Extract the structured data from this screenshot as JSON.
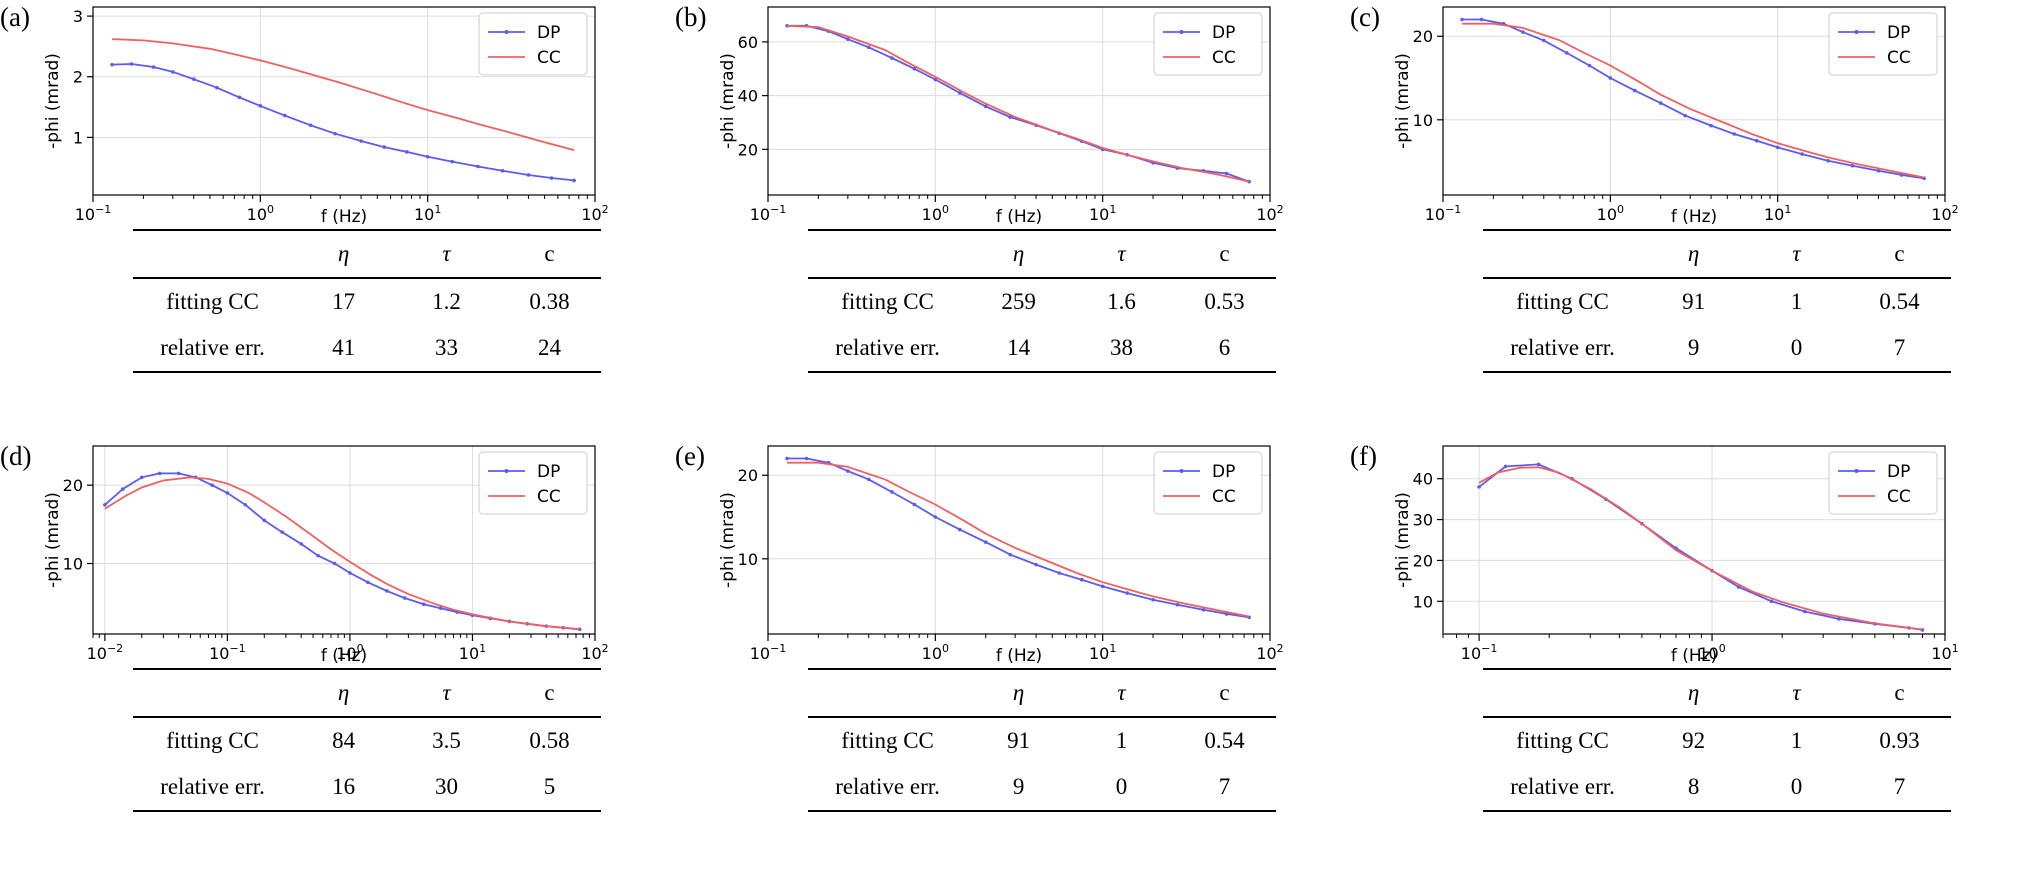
{
  "chart_data": [
    {
      "label": "(a)",
      "type": "line",
      "xscale": "log",
      "xlim": [
        0.1,
        100
      ],
      "ylim": [
        0.05,
        3.15
      ],
      "yticks": [
        1,
        2,
        3
      ],
      "grid": true,
      "legend_position": "top-right",
      "xlabel": "f (Hz)",
      "ylabel": "-phi (mrad)",
      "series": [
        {
          "name": "DP",
          "color": "#5b5bf0",
          "markers": true,
          "x": [
            0.13,
            0.17,
            0.23,
            0.3,
            0.4,
            0.55,
            0.75,
            1.0,
            1.4,
            2.0,
            2.8,
            4.0,
            5.5,
            7.5,
            10,
            14,
            20,
            28,
            40,
            55,
            75
          ],
          "y": [
            2.2,
            2.21,
            2.16,
            2.08,
            1.96,
            1.82,
            1.66,
            1.52,
            1.36,
            1.2,
            1.06,
            0.94,
            0.84,
            0.76,
            0.68,
            0.6,
            0.52,
            0.45,
            0.38,
            0.33,
            0.29
          ]
        },
        {
          "name": "CC",
          "color": "#f06060",
          "markers": false,
          "x": [
            0.13,
            0.2,
            0.3,
            0.5,
            0.7,
            1.0,
            1.5,
            2,
            3,
            5,
            7,
            10,
            15,
            20,
            30,
            50,
            75
          ],
          "y": [
            2.62,
            2.6,
            2.55,
            2.46,
            2.37,
            2.27,
            2.14,
            2.04,
            1.9,
            1.71,
            1.58,
            1.45,
            1.32,
            1.22,
            1.09,
            0.92,
            0.79
          ]
        }
      ],
      "table": {
        "headers": [
          "η",
          "τ",
          "c"
        ],
        "rows": [
          {
            "label": "fitting CC",
            "values": [
              "17",
              "1.2",
              "0.38"
            ]
          },
          {
            "label": "relative err.",
            "values": [
              "41",
              "33",
              "24"
            ]
          }
        ]
      }
    },
    {
      "label": "(b)",
      "type": "line",
      "xscale": "log",
      "xlim": [
        0.1,
        100
      ],
      "ylim": [
        3,
        73
      ],
      "yticks": [
        20,
        40,
        60
      ],
      "grid": true,
      "legend_position": "top-right",
      "xlabel": "f (Hz)",
      "ylabel": "-phi (mrad)",
      "series": [
        {
          "name": "DP",
          "color": "#5b5bf0",
          "markers": true,
          "x": [
            0.13,
            0.17,
            0.23,
            0.3,
            0.4,
            0.55,
            0.75,
            1.0,
            1.4,
            2.0,
            2.8,
            4.0,
            5.5,
            7.5,
            10,
            14,
            20,
            28,
            40,
            55,
            75
          ],
          "y": [
            66,
            66,
            64,
            61,
            58,
            54,
            50,
            46,
            41,
            36,
            32,
            29,
            26,
            23,
            20,
            18,
            15,
            13,
            12,
            11,
            8
          ]
        },
        {
          "name": "CC",
          "color": "#f06060",
          "markers": false,
          "x": [
            0.13,
            0.2,
            0.3,
            0.5,
            0.7,
            1.0,
            1.5,
            2,
            3,
            5,
            7,
            10,
            15,
            20,
            30,
            50,
            75
          ],
          "y": [
            66,
            65.5,
            62,
            57,
            52,
            47,
            41,
            37,
            32,
            27,
            24,
            20.5,
            17.5,
            15.5,
            13,
            10.5,
            8
          ]
        }
      ],
      "table": {
        "headers": [
          "η",
          "τ",
          "c"
        ],
        "rows": [
          {
            "label": "fitting CC",
            "values": [
              "259",
              "1.6",
              "0.53"
            ]
          },
          {
            "label": "relative err.",
            "values": [
              "14",
              "38",
              "6"
            ]
          }
        ]
      }
    },
    {
      "label": "(c)",
      "type": "line",
      "xscale": "log",
      "xlim": [
        0.1,
        100
      ],
      "ylim": [
        1,
        23.5
      ],
      "yticks": [
        10,
        20
      ],
      "grid": true,
      "legend_position": "top-right",
      "xlabel": "f (Hz)",
      "ylabel": "-phi (mrad)",
      "series": [
        {
          "name": "DP",
          "color": "#5b5bf0",
          "markers": true,
          "x": [
            0.13,
            0.17,
            0.23,
            0.3,
            0.4,
            0.55,
            0.75,
            1.0,
            1.4,
            2.0,
            2.8,
            4.0,
            5.5,
            7.5,
            10,
            14,
            20,
            28,
            40,
            55,
            75
          ],
          "y": [
            22,
            22,
            21.5,
            20.5,
            19.5,
            18,
            16.5,
            15,
            13.5,
            12,
            10.5,
            9.3,
            8.3,
            7.5,
            6.7,
            5.9,
            5.1,
            4.5,
            3.9,
            3.4,
            3.0
          ]
        },
        {
          "name": "CC",
          "color": "#f06060",
          "markers": false,
          "x": [
            0.13,
            0.2,
            0.3,
            0.5,
            0.7,
            1.0,
            1.5,
            2,
            3,
            5,
            7,
            10,
            15,
            20,
            30,
            50,
            75
          ],
          "y": [
            21.5,
            21.5,
            21,
            19.5,
            18,
            16.5,
            14.5,
            13,
            11.3,
            9.5,
            8.3,
            7.2,
            6.2,
            5.5,
            4.7,
            3.8,
            3.1
          ]
        }
      ],
      "table": {
        "headers": [
          "η",
          "τ",
          "c"
        ],
        "rows": [
          {
            "label": "fitting CC",
            "values": [
              "91",
              "1",
              "0.54"
            ]
          },
          {
            "label": "relative err.",
            "values": [
              "9",
              "0",
              "7"
            ]
          }
        ]
      }
    },
    {
      "label": "(d)",
      "type": "line",
      "xscale": "log",
      "xlim": [
        0.008,
        100
      ],
      "ylim": [
        1,
        25
      ],
      "yticks": [
        10,
        20
      ],
      "grid": true,
      "legend_position": "top-right",
      "xlabel": "f (Hz)",
      "ylabel": "-phi (mrad)",
      "series": [
        {
          "name": "DP",
          "color": "#5b5bf0",
          "markers": true,
          "x": [
            0.01,
            0.014,
            0.02,
            0.028,
            0.04,
            0.055,
            0.075,
            0.1,
            0.14,
            0.2,
            0.28,
            0.4,
            0.55,
            0.75,
            1.0,
            1.4,
            2.0,
            2.8,
            4.0,
            5.5,
            7.5,
            10,
            14,
            20,
            28,
            40,
            55,
            75
          ],
          "y": [
            17.5,
            19.5,
            21,
            21.5,
            21.5,
            21,
            20,
            19,
            17.5,
            15.5,
            14,
            12.5,
            11,
            10,
            8.8,
            7.6,
            6.5,
            5.6,
            4.8,
            4.3,
            3.8,
            3.4,
            3.0,
            2.6,
            2.3,
            2.0,
            1.8,
            1.6
          ]
        },
        {
          "name": "CC",
          "color": "#f06060",
          "markers": false,
          "x": [
            0.01,
            0.015,
            0.02,
            0.03,
            0.05,
            0.07,
            0.1,
            0.15,
            0.2,
            0.3,
            0.5,
            0.7,
            1.0,
            1.5,
            2,
            3,
            5,
            7,
            10,
            20,
            40,
            75
          ],
          "y": [
            17,
            18.7,
            19.7,
            20.6,
            21,
            20.8,
            20.2,
            19,
            17.8,
            16,
            13.5,
            11.8,
            10.2,
            8.5,
            7.4,
            6.1,
            4.8,
            4.1,
            3.5,
            2.6,
            2.0,
            1.6
          ]
        }
      ],
      "table": {
        "headers": [
          "η",
          "τ",
          "c"
        ],
        "rows": [
          {
            "label": "fitting CC",
            "values": [
              "84",
              "3.5",
              "0.58"
            ]
          },
          {
            "label": "relative err.",
            "values": [
              "16",
              "30",
              "5"
            ]
          }
        ]
      }
    },
    {
      "label": "(e)",
      "type": "line",
      "xscale": "log",
      "xlim": [
        0.1,
        100
      ],
      "ylim": [
        1,
        23.5
      ],
      "yticks": [
        10,
        20
      ],
      "grid": true,
      "legend_position": "top-right",
      "xlabel": "f (Hz)",
      "ylabel": "-phi (mrad)",
      "series": [
        {
          "name": "DP",
          "color": "#5b5bf0",
          "markers": true,
          "x": [
            0.13,
            0.17,
            0.23,
            0.3,
            0.4,
            0.55,
            0.75,
            1.0,
            1.4,
            2.0,
            2.8,
            4.0,
            5.5,
            7.5,
            10,
            14,
            20,
            28,
            40,
            55,
            75
          ],
          "y": [
            22,
            22,
            21.5,
            20.5,
            19.5,
            18,
            16.5,
            15,
            13.5,
            12,
            10.5,
            9.3,
            8.3,
            7.5,
            6.7,
            5.9,
            5.1,
            4.5,
            3.9,
            3.4,
            3.0
          ]
        },
        {
          "name": "CC",
          "color": "#f06060",
          "markers": false,
          "x": [
            0.13,
            0.2,
            0.3,
            0.5,
            0.7,
            1.0,
            1.5,
            2,
            3,
            5,
            7,
            10,
            15,
            20,
            30,
            50,
            75
          ],
          "y": [
            21.5,
            21.5,
            21,
            19.5,
            18,
            16.5,
            14.5,
            13,
            11.3,
            9.5,
            8.3,
            7.2,
            6.2,
            5.5,
            4.7,
            3.8,
            3.1
          ]
        }
      ],
      "table": {
        "headers": [
          "η",
          "τ",
          "c"
        ],
        "rows": [
          {
            "label": "fitting CC",
            "values": [
              "91",
              "1",
              "0.54"
            ]
          },
          {
            "label": "relative err.",
            "values": [
              "9",
              "0",
              "7"
            ]
          }
        ]
      }
    },
    {
      "label": "(f)",
      "type": "line",
      "xscale": "log",
      "xlim": [
        0.07,
        10
      ],
      "ylim": [
        2,
        48
      ],
      "yticks": [
        10,
        20,
        30,
        40
      ],
      "grid": true,
      "legend_position": "top-right",
      "xlabel": "f (Hz)",
      "ylabel": "-phi (mrad)",
      "series": [
        {
          "name": "DP",
          "color": "#5b5bf0",
          "markers": true,
          "x": [
            0.1,
            0.13,
            0.18,
            0.25,
            0.35,
            0.5,
            0.7,
            1.0,
            1.3,
            1.8,
            2.5,
            3.5,
            5.0,
            7.0,
            8.0
          ],
          "y": [
            38,
            43,
            43.5,
            40,
            35,
            29,
            23,
            17.5,
            13.5,
            10,
            7.5,
            5.7,
            4.5,
            3.5,
            3.0
          ]
        },
        {
          "name": "CC",
          "color": "#f06060",
          "markers": false,
          "x": [
            0.1,
            0.12,
            0.15,
            0.18,
            0.22,
            0.3,
            0.4,
            0.5,
            0.7,
            1.0,
            1.5,
            2,
            3,
            5,
            8
          ],
          "y": [
            39,
            41.5,
            42.7,
            42.8,
            41.5,
            37.5,
            33,
            29,
            22.5,
            17.5,
            12.3,
            9.8,
            7,
            4.6,
            3.1
          ]
        }
      ],
      "table": {
        "headers": [
          "η",
          "τ",
          "c"
        ],
        "rows": [
          {
            "label": "fitting CC",
            "values": [
              "92",
              "1",
              "0.93"
            ]
          },
          {
            "label": "relative err.",
            "values": [
              "8",
              "0",
              "7"
            ]
          }
        ]
      }
    }
  ]
}
